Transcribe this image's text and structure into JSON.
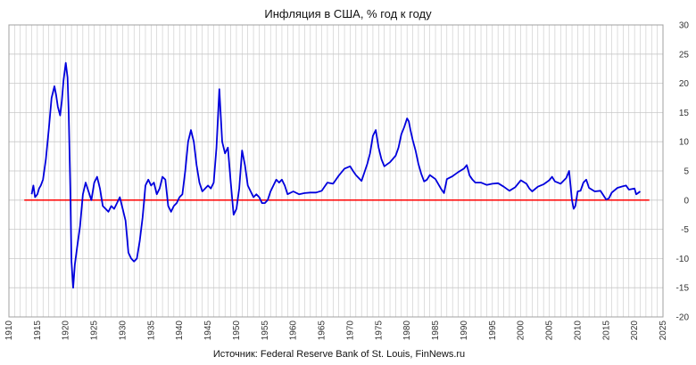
{
  "chart_data": {
    "type": "line",
    "title": "Инфляция в США, % год к году",
    "source": "Источник: Federal Reserve Bank of St. Louis, FinNews.ru",
    "xlabel": "",
    "ylabel": "",
    "xlim": [
      1910,
      2025
    ],
    "ylim": [
      -20,
      30
    ],
    "x_ticks": [
      1910,
      1915,
      1920,
      1925,
      1930,
      1935,
      1940,
      1945,
      1950,
      1955,
      1960,
      1965,
      1970,
      1975,
      1980,
      1985,
      1990,
      1995,
      2000,
      2005,
      2010,
      2015,
      2020,
      2025
    ],
    "y_ticks": [
      -20,
      -15,
      -10,
      -5,
      0,
      5,
      10,
      15,
      20,
      25,
      30
    ],
    "y_axis_side": "right",
    "grid": true,
    "legend": "none",
    "colors": {
      "series": "#0000dd",
      "zero_line": "#ff0000",
      "grid": "#c8c8c8"
    },
    "zero_line": {
      "y": 0,
      "x_start": 1912.7,
      "x_end": 2022.6
    },
    "series": [
      {
        "x": [
          1914.0,
          1914.3,
          1914.6,
          1915.0,
          1915.3,
          1915.6,
          1916.0,
          1916.5,
          1917.0,
          1917.5,
          1918.0,
          1918.3,
          1918.6,
          1919.0,
          1919.3,
          1919.6,
          1920.0,
          1920.3,
          1920.5,
          1920.8,
          1921.0,
          1921.3,
          1921.6,
          1922.0,
          1922.5,
          1923.0,
          1923.5,
          1924.0,
          1924.5,
          1925.0,
          1925.5,
          1926.0,
          1926.5,
          1927.0,
          1927.5,
          1928.0,
          1928.5,
          1929.0,
          1929.5,
          1930.0,
          1930.5,
          1931.0,
          1931.5,
          1932.0,
          1932.5,
          1933.0,
          1933.5,
          1934.0,
          1934.5,
          1935.0,
          1935.5,
          1936.0,
          1936.5,
          1937.0,
          1937.5,
          1938.0,
          1938.5,
          1939.0,
          1939.5,
          1940.0,
          1940.5,
          1941.0,
          1941.5,
          1942.0,
          1942.5,
          1943.0,
          1943.5,
          1944.0,
          1944.5,
          1945.0,
          1945.5,
          1946.0,
          1946.5,
          1947.0,
          1947.5,
          1948.0,
          1948.5,
          1949.0,
          1949.5,
          1950.0,
          1950.5,
          1951.0,
          1951.5,
          1952.0,
          1952.5,
          1953.0,
          1953.5,
          1954.0,
          1954.5,
          1955.0,
          1955.5,
          1956.0,
          1956.5,
          1957.0,
          1957.5,
          1958.0,
          1958.5,
          1959.0,
          1960.0,
          1961.0,
          1962.0,
          1963.0,
          1964.0,
          1965.0,
          1966.0,
          1967.0,
          1968.0,
          1969.0,
          1970.0,
          1970.5,
          1971.0,
          1972.0,
          1973.0,
          1973.5,
          1974.0,
          1974.5,
          1975.0,
          1975.5,
          1976.0,
          1977.0,
          1978.0,
          1978.5,
          1979.0,
          1979.5,
          1980.0,
          1980.3,
          1980.6,
          1981.0,
          1981.5,
          1982.0,
          1982.5,
          1983.0,
          1983.5,
          1984.0,
          1985.0,
          1986.0,
          1986.5,
          1987.0,
          1988.0,
          1989.0,
          1990.0,
          1990.5,
          1991.0,
          1991.5,
          1992.0,
          1993.0,
          1994.0,
          1995.0,
          1996.0,
          1997.0,
          1998.0,
          1999.0,
          2000.0,
          2001.0,
          2001.5,
          2002.0,
          2003.0,
          2004.0,
          2005.0,
          2005.5,
          2006.0,
          2006.5,
          2007.0,
          2008.0,
          2008.5,
          2009.0,
          2009.3,
          2009.6,
          2010.0,
          2010.5,
          2011.0,
          2011.5,
          2012.0,
          2013.0,
          2014.0,
          2015.0,
          2015.5,
          2016.0,
          2017.0,
          2018.0,
          2018.5,
          2019.0,
          2020.0,
          2020.3,
          2020.6,
          2021.0
        ],
        "values": [
          1.0,
          2.5,
          0.5,
          1.0,
          2.0,
          2.5,
          3.5,
          7.0,
          12.0,
          17.5,
          19.5,
          18.0,
          16.0,
          14.5,
          17.0,
          20.5,
          23.5,
          21.0,
          15.5,
          2.0,
          -10.5,
          -15.0,
          -11.0,
          -8.0,
          -4.5,
          1.0,
          3.0,
          1.5,
          0.0,
          3.0,
          4.0,
          2.0,
          -1.0,
          -1.5,
          -2.0,
          -1.0,
          -1.5,
          -0.5,
          0.5,
          -1.5,
          -3.5,
          -9.0,
          -10.0,
          -10.5,
          -10.0,
          -7.0,
          -3.0,
          2.5,
          3.5,
          2.5,
          3.0,
          1.0,
          2.0,
          4.0,
          3.5,
          -1.0,
          -2.0,
          -1.0,
          -0.5,
          0.5,
          1.0,
          5.0,
          10.0,
          12.0,
          10.0,
          6.0,
          3.0,
          1.5,
          2.0,
          2.5,
          2.0,
          3.0,
          9.0,
          19.0,
          10.0,
          8.0,
          9.0,
          3.0,
          -2.5,
          -1.5,
          2.0,
          8.5,
          6.0,
          2.5,
          1.5,
          0.5,
          1.0,
          0.5,
          -0.5,
          -0.5,
          0.0,
          1.5,
          2.5,
          3.5,
          3.0,
          3.5,
          2.5,
          1.0,
          1.5,
          1.0,
          1.2,
          1.3,
          1.3,
          1.6,
          3.0,
          2.8,
          4.2,
          5.4,
          5.8,
          5.0,
          4.3,
          3.3,
          6.2,
          8.0,
          11.0,
          12.0,
          9.0,
          7.0,
          5.8,
          6.5,
          7.6,
          9.0,
          11.3,
          12.5,
          14.0,
          13.5,
          12.0,
          10.3,
          8.5,
          6.2,
          4.5,
          3.2,
          3.5,
          4.3,
          3.6,
          1.9,
          1.2,
          3.6,
          4.1,
          4.8,
          5.4,
          6.0,
          4.2,
          3.5,
          3.0,
          3.0,
          2.6,
          2.8,
          2.9,
          2.3,
          1.6,
          2.2,
          3.4,
          2.8,
          2.0,
          1.5,
          2.3,
          2.7,
          3.4,
          4.0,
          3.2,
          3.0,
          2.8,
          3.8,
          5.0,
          0.0,
          -1.5,
          -1.0,
          1.5,
          1.6,
          3.0,
          3.5,
          2.1,
          1.5,
          1.6,
          0.1,
          0.3,
          1.3,
          2.1,
          2.4,
          2.5,
          1.8,
          2.0,
          1.0,
          1.2,
          1.5
        ]
      }
    ]
  }
}
